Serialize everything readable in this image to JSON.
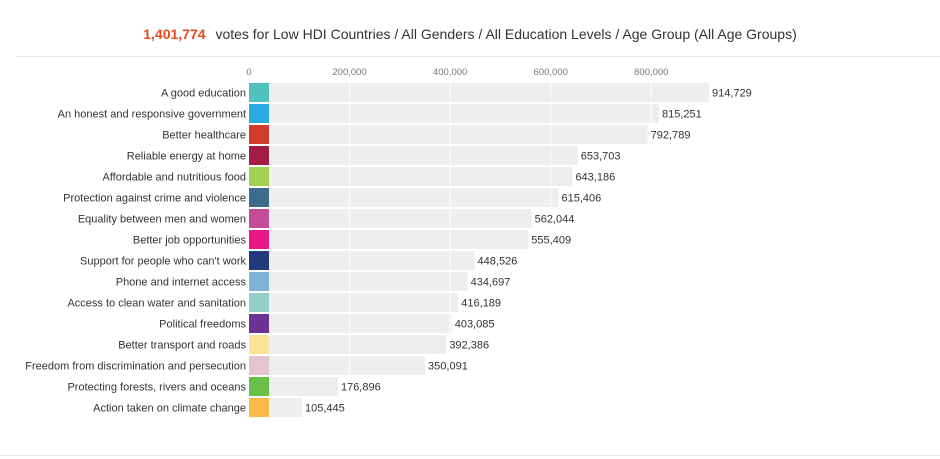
{
  "header": {
    "total_votes": "1,401,774",
    "caption": "votes for Low HDI Countries / All Genders / All Education Levels / Age Group (All Age Groups)"
  },
  "colors": {
    "total_highlight": "#e84a1e",
    "bar_background": "#eeeeee",
    "gridline": "#ffffff"
  },
  "chart_data": {
    "type": "bar",
    "orientation": "horizontal",
    "x_ticks": [
      "0",
      "200,000",
      "400,000",
      "600,000",
      "800,000"
    ],
    "tick_values": [
      0,
      200000,
      400000,
      600000,
      800000
    ],
    "categories": [
      "A good education",
      "An honest and responsive government",
      "Better healthcare",
      "Reliable energy at home",
      "Affordable and nutritious food",
      "Protection against crime and violence",
      "Equality between men and women",
      "Better job opportunities",
      "Support for people who can't work",
      "Phone and internet access",
      "Access to clean water and sanitation",
      "Political freedoms",
      "Better transport and roads",
      "Freedom from discrimination and persecution",
      "Protecting forests, rivers and oceans",
      "Action taken on climate change"
    ],
    "values": [
      914729,
      815251,
      792789,
      653703,
      643186,
      615406,
      562044,
      555409,
      448526,
      434697,
      416189,
      403085,
      392386,
      350091,
      176896,
      105445
    ],
    "value_labels": [
      "914,729",
      "815,251",
      "792,789",
      "653,703",
      "643,186",
      "615,406",
      "562,044",
      "555,409",
      "448,526",
      "434,697",
      "416,189",
      "403,085",
      "392,386",
      "350,091",
      "176,896",
      "105,445"
    ],
    "swatch_colors": [
      "#4fc2bd",
      "#27a9e1",
      "#d13b2e",
      "#a31c44",
      "#a5cf4e",
      "#3b6c8d",
      "#c34b97",
      "#ea168a",
      "#223a7c",
      "#7fb2d9",
      "#93d0c6",
      "#6b3393",
      "#fbe397",
      "#e3c4cf",
      "#6abf4b",
      "#fdb84a"
    ],
    "xlim": [
      0,
      914729
    ],
    "grid": true
  }
}
